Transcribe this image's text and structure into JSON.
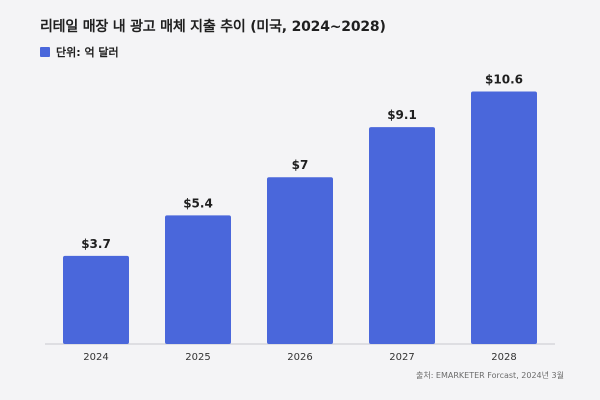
{
  "chart_data": {
    "type": "bar",
    "title": "리테일 매장 내 광고 매체 지출 추이 (미국, 2024~2028)",
    "legend": [
      {
        "name": "단위: 억 달러",
        "color": "#4a67db"
      }
    ],
    "categories": [
      "2024",
      "2025",
      "2026",
      "2027",
      "2028"
    ],
    "series": [
      {
        "name": "단위: 억 달러",
        "values": [
          3.7,
          5.4,
          7,
          9.1,
          10.6
        ],
        "labels": [
          "$3.7",
          "$5.4",
          "$7",
          "$9.1",
          "$10.6"
        ],
        "color": "#4a67db"
      }
    ],
    "ylim": [
      0,
      11.5
    ],
    "grid": false,
    "source": "출처: EMARKETER Forcast, 2024년 3월"
  }
}
